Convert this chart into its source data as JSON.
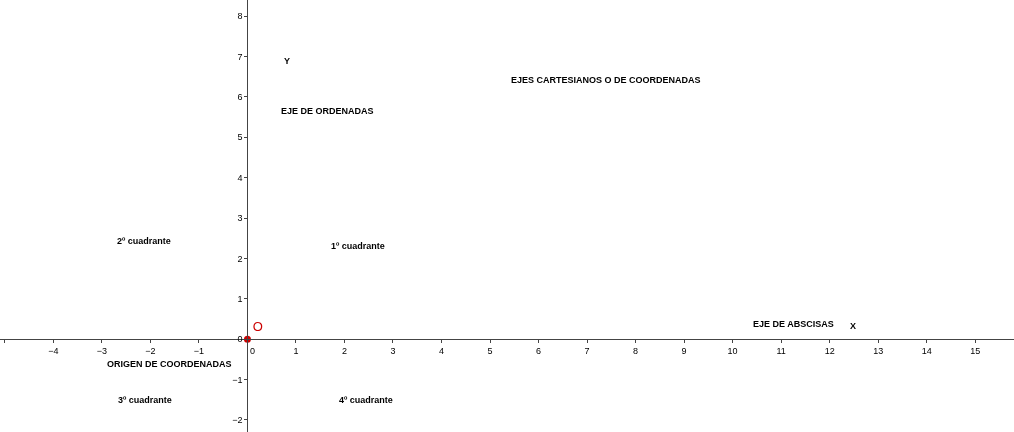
{
  "chart_data": {
    "type": "scatter",
    "x": [
      0
    ],
    "series": [
      {
        "name": "O",
        "color": "#cc0000",
        "values": [
          0
        ]
      }
    ],
    "marker": "circle",
    "xlim": [
      -5.1,
      15.8
    ],
    "ylim": [
      -2.3,
      8.4
    ],
    "xticks": [
      {
        "value": -5,
        "label": null
      },
      -4,
      -3,
      -2,
      -1,
      0,
      1,
      2,
      3,
      4,
      5,
      6,
      7,
      8,
      9,
      10,
      11,
      12,
      13,
      14,
      15
    ],
    "yticks": [
      -2,
      -1,
      0,
      1,
      2,
      3,
      4,
      5,
      6,
      7,
      8
    ],
    "grid": false,
    "legend": false,
    "annotations": [
      "EJES CARTESIANOS O DE COORDENADAS",
      "Y",
      "EJE DE ORDENADAS",
      "2º cuadrante",
      "1º cuadrante",
      "ORIGEN DE COORDENADAS",
      "3º cuadrante",
      "4º cuadrante",
      "EJE DE ABSCISAS",
      "X"
    ]
  }
}
